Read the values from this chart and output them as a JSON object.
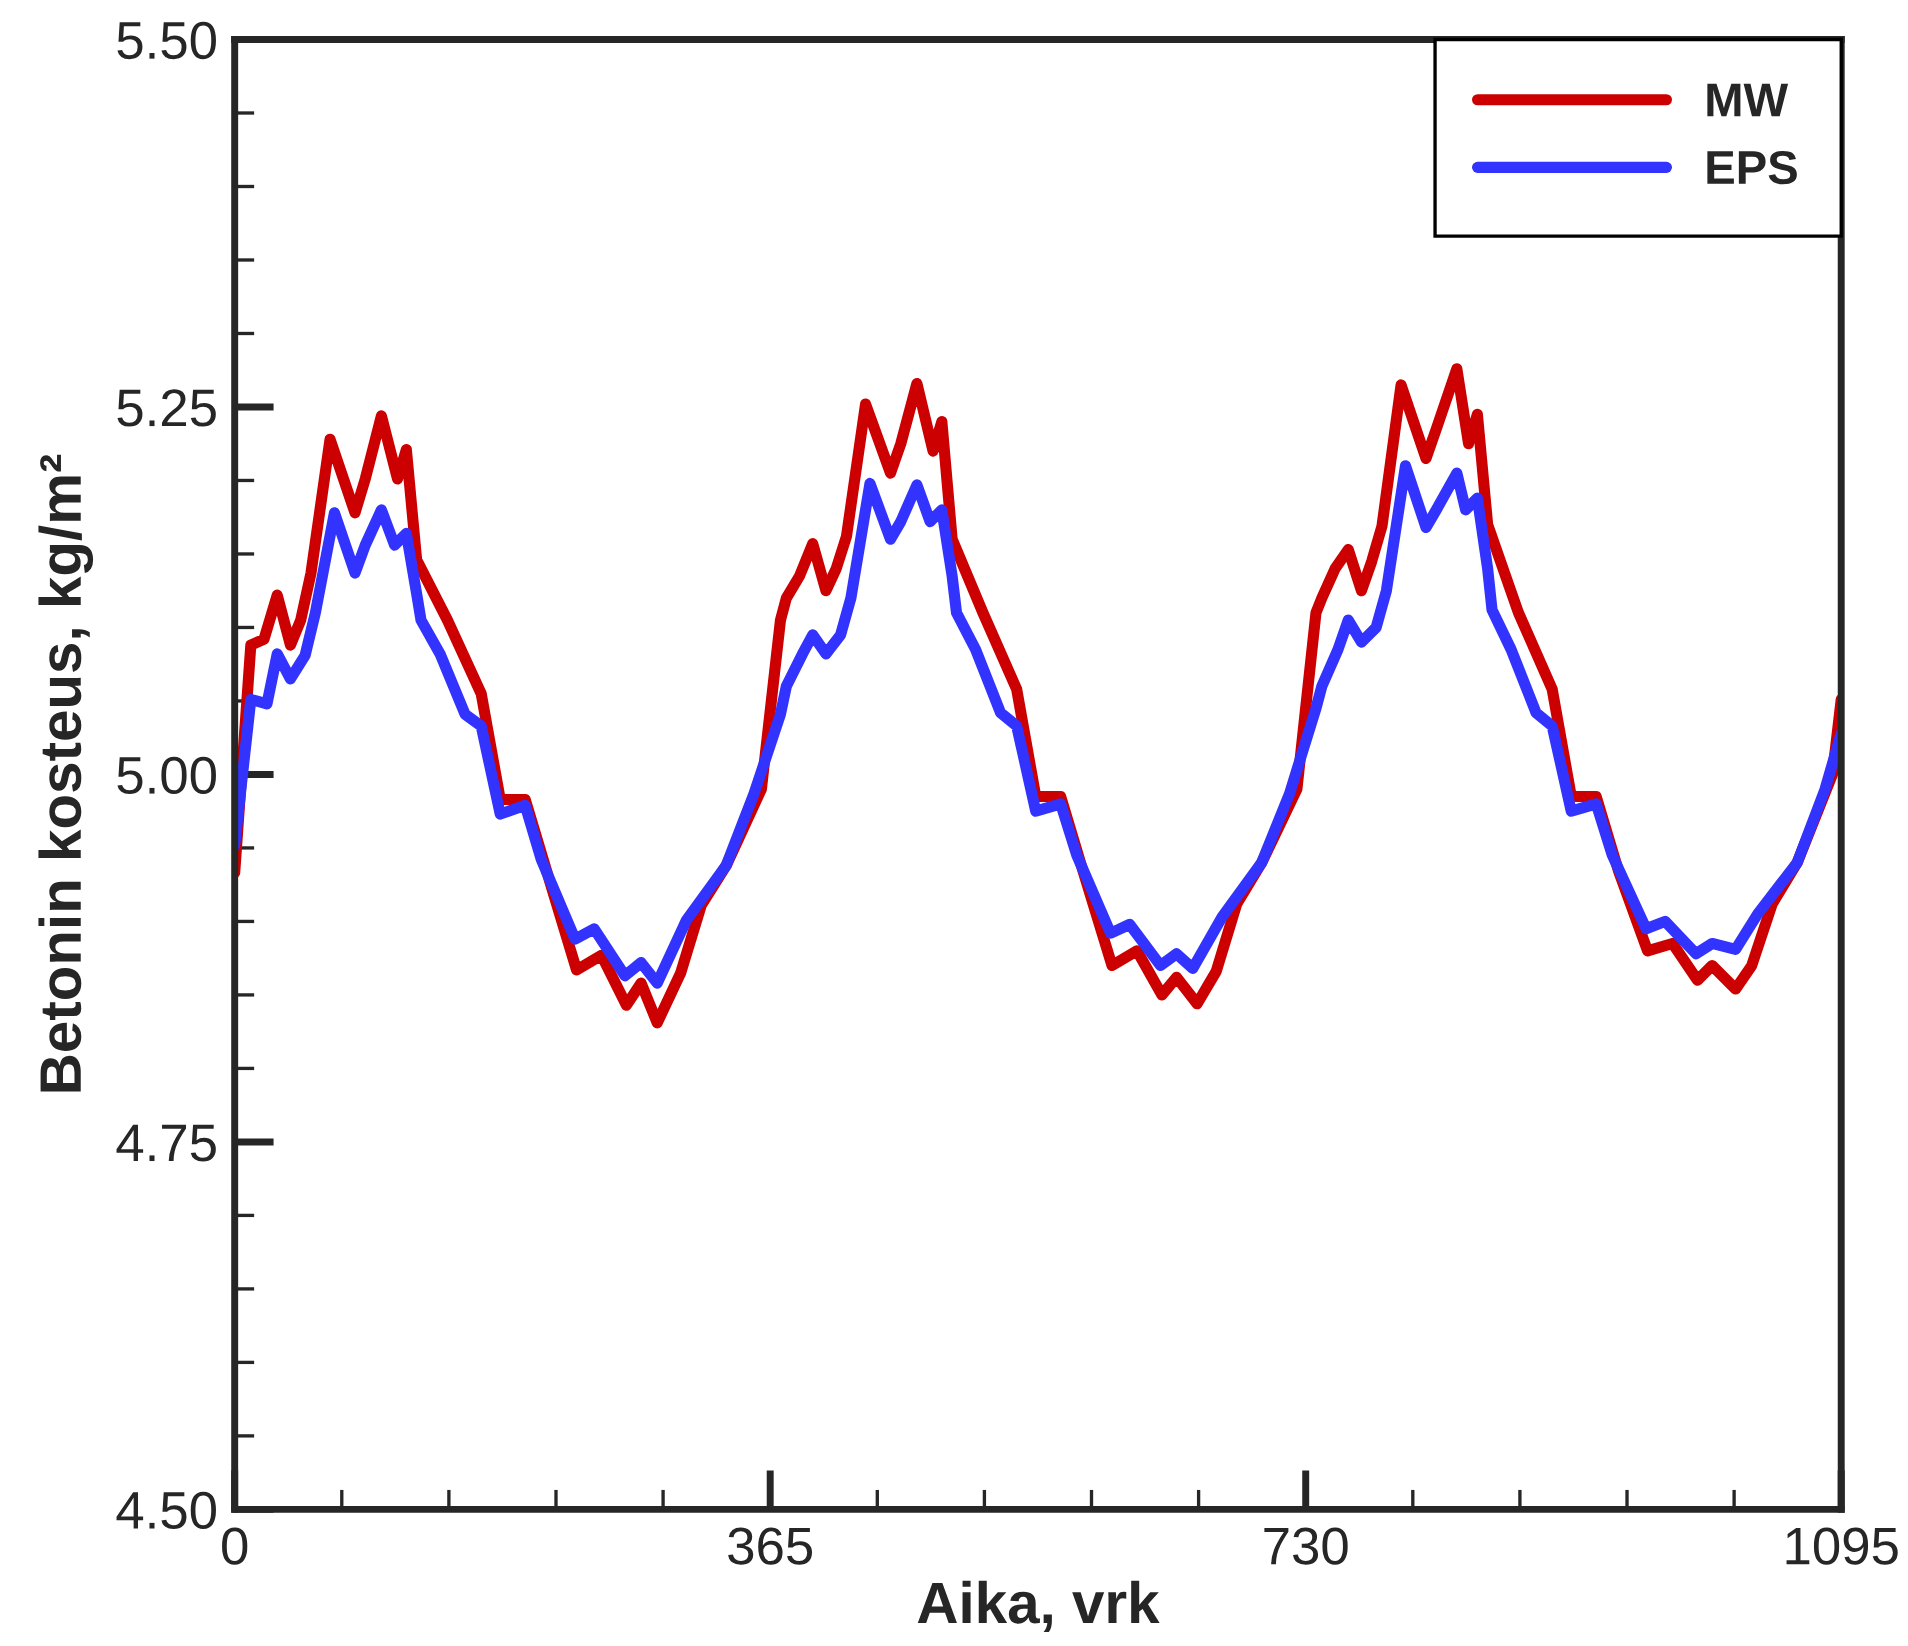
{
  "chart_data": {
    "type": "line",
    "xlabel": "Aika, vrk",
    "ylabel": "Betonin kosteus, kg/m²",
    "xlim": [
      0,
      1095
    ],
    "xticks": [
      0,
      365,
      730,
      1095
    ],
    "ylim": [
      4.5,
      5.5
    ],
    "yticks": [
      {
        "value": 4.5,
        "label": "4.50"
      },
      {
        "value": 4.75,
        "label": "4.75"
      },
      {
        "value": 5.0,
        "label": "5.00"
      },
      {
        "value": 5.25,
        "label": "5.25"
      },
      {
        "value": 5.5,
        "label": "5.50"
      }
    ],
    "grid": false,
    "legend": "top right",
    "marker": "none",
    "line_style": "solid",
    "series": [
      {
        "name": "MW",
        "color": "#cc0000",
        "x": [
          0,
          11,
          20,
          29,
          38,
          45,
          52,
          65,
          82,
          89,
          100,
          111,
          117,
          124,
          145,
          168,
          181,
          198,
          213,
          233,
          250,
          267,
          277,
          288,
          304,
          318,
          335,
          359,
          372,
          376,
          385,
          394,
          403,
          410,
          417,
          430,
          447,
          454,
          465,
          476,
          482,
          489,
          510,
          533,
          546,
          563,
          578,
          598,
          615,
          632,
          642,
          656,
          669,
          683,
          700,
          724,
          737,
          741,
          750,
          759,
          768,
          775,
          782,
          795,
          812,
          819,
          833,
          841,
          847,
          854,
          875,
          898,
          911,
          928,
          943,
          963,
          980,
          997,
          1007,
          1023,
          1034,
          1048,
          1065,
          1089,
          1095
        ],
        "values": [
          4.933,
          5.088,
          5.092,
          5.122,
          5.088,
          5.105,
          5.137,
          5.228,
          5.178,
          5.201,
          5.244,
          5.201,
          5.221,
          5.146,
          5.105,
          5.055,
          4.983,
          4.983,
          4.933,
          4.867,
          4.877,
          4.843,
          4.858,
          4.831,
          4.865,
          4.911,
          4.938,
          4.99,
          5.105,
          5.12,
          5.135,
          5.157,
          5.125,
          5.14,
          5.162,
          5.252,
          5.205,
          5.225,
          5.266,
          5.22,
          5.24,
          5.16,
          5.11,
          5.058,
          4.985,
          4.985,
          4.935,
          4.87,
          4.88,
          4.85,
          4.862,
          4.844,
          4.866,
          4.912,
          4.94,
          4.99,
          5.11,
          5.12,
          5.14,
          5.153,
          5.125,
          5.145,
          5.169,
          5.265,
          5.215,
          5.235,
          5.276,
          5.225,
          5.245,
          5.17,
          5.11,
          5.058,
          4.985,
          4.985,
          4.935,
          4.88,
          4.885,
          4.86,
          4.87,
          4.854,
          4.87,
          4.912,
          4.94,
          5.0,
          5.051
        ]
      },
      {
        "name": "EPS",
        "color": "#3333ff",
        "x": [
          0,
          11,
          22,
          29,
          38,
          48,
          55,
          68,
          82,
          89,
          100,
          109,
          117,
          124,
          127,
          140,
          157,
          168,
          181,
          198,
          209,
          232,
          245,
          266,
          277,
          288,
          308,
          335,
          354,
          372,
          376,
          387,
          394,
          403,
          413,
          420,
          433,
          447,
          454,
          465,
          474,
          482,
          489,
          492,
          505,
          522,
          533,
          546,
          563,
          574,
          597,
          610,
          631,
          642,
          653,
          673,
          700,
          719,
          737,
          741,
          752,
          759,
          768,
          778,
          785,
          798,
          812,
          819,
          833,
          839,
          847,
          854,
          857,
          870,
          887,
          898,
          911,
          928,
          939,
          962,
          975,
          996,
          1007,
          1023,
          1038,
          1065,
          1084,
          1095
        ],
        "values": [
          4.952,
          5.051,
          5.048,
          5.082,
          5.065,
          5.081,
          5.11,
          5.178,
          5.137,
          5.156,
          5.18,
          5.156,
          5.164,
          5.123,
          5.105,
          5.082,
          5.041,
          5.033,
          4.973,
          4.979,
          4.942,
          4.888,
          4.895,
          4.863,
          4.872,
          4.858,
          4.901,
          4.938,
          4.987,
          5.041,
          5.06,
          5.082,
          5.095,
          5.082,
          5.095,
          5.12,
          5.198,
          5.16,
          5.172,
          5.197,
          5.172,
          5.18,
          5.135,
          5.11,
          5.085,
          5.042,
          5.033,
          4.975,
          4.98,
          4.945,
          4.892,
          4.898,
          4.87,
          4.878,
          4.868,
          4.903,
          4.94,
          4.987,
          5.045,
          5.06,
          5.085,
          5.105,
          5.09,
          5.1,
          5.125,
          5.21,
          5.168,
          5.18,
          5.205,
          5.18,
          5.188,
          5.14,
          5.112,
          5.085,
          5.042,
          5.033,
          4.975,
          4.98,
          4.945,
          4.895,
          4.9,
          4.878,
          4.885,
          4.881,
          4.905,
          4.94,
          4.99,
          5.028
        ]
      }
    ]
  }
}
